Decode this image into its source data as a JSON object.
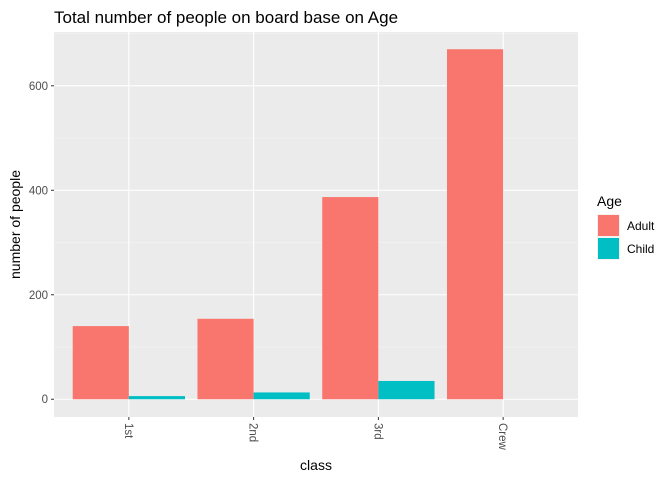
{
  "chart_data": {
    "type": "bar",
    "title": "Total number of people on board base on Age",
    "xlabel": "class",
    "ylabel": "number of people",
    "categories": [
      "1st",
      "2nd",
      "3rd",
      "Crew"
    ],
    "series": [
      {
        "name": "Adult",
        "values": [
          140,
          154,
          387,
          670
        ],
        "color": "#F8766D"
      },
      {
        "name": "Child",
        "values": [
          6,
          13,
          35,
          0
        ],
        "color": "#00BFC4"
      }
    ],
    "yticks": [
      0,
      200,
      400,
      600
    ],
    "ylim": [
      -34,
      703
    ],
    "legend": {
      "title": "Age",
      "position": "right"
    },
    "grid": true,
    "panel_background": "#EBEBEB",
    "x_tick_rotation": "90 degrees clockwise"
  }
}
